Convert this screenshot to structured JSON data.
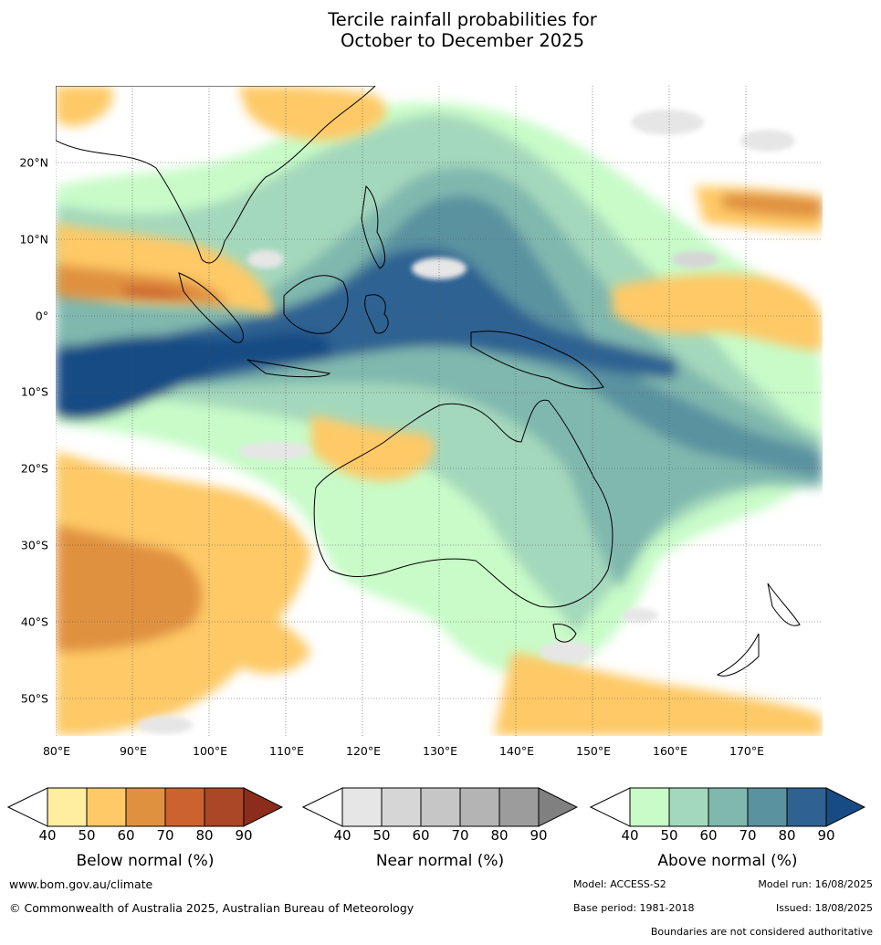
{
  "title": {
    "line1": "Tercile rainfall probabilities for",
    "line2": "October to December 2025"
  },
  "map": {
    "latitude_labels": [
      "20°N",
      "10°N",
      "0°",
      "10°S",
      "20°S",
      "30°S",
      "40°S",
      "50°S"
    ],
    "longitude_labels": [
      "80°E",
      "90°E",
      "100°E",
      "110°E",
      "120°E",
      "130°E",
      "140°E",
      "150°E",
      "160°E",
      "170°E"
    ],
    "extent": {
      "lon": [
        80,
        180
      ],
      "lat": [
        -55,
        30
      ]
    }
  },
  "legend": {
    "ticks": [
      "40",
      "50",
      "60",
      "70",
      "80",
      "90"
    ],
    "below": {
      "label": "Below normal (%)",
      "colors": [
        "#ffeda0",
        "#fec966",
        "#e0913f",
        "#cc622f",
        "#ab4626",
        "#8c2d1c"
      ]
    },
    "near": {
      "label": "Near normal (%)",
      "colors": [
        "#e6e6e6",
        "#d6d6d6",
        "#c6c6c6",
        "#b4b4b4",
        "#9c9c9c",
        "#808080"
      ]
    },
    "above": {
      "label": "Above normal (%)",
      "colors": [
        "#c8fbc8",
        "#a4d8bc",
        "#80b8ae",
        "#5a92a0",
        "#2f6292",
        "#174b84"
      ]
    }
  },
  "footer": {
    "website": "www.bom.gov.au/climate",
    "copyright": "© Commonwealth of Australia 2025, Australian Bureau of Meteorology",
    "model": "Model: ACCESS-S2",
    "model_run": "Model run: 16/08/2025",
    "base_period": "Base period: 1981-2018",
    "issued": "Issued: 18/08/2025",
    "disclaimer": "Boundaries are not considered authoritative"
  }
}
